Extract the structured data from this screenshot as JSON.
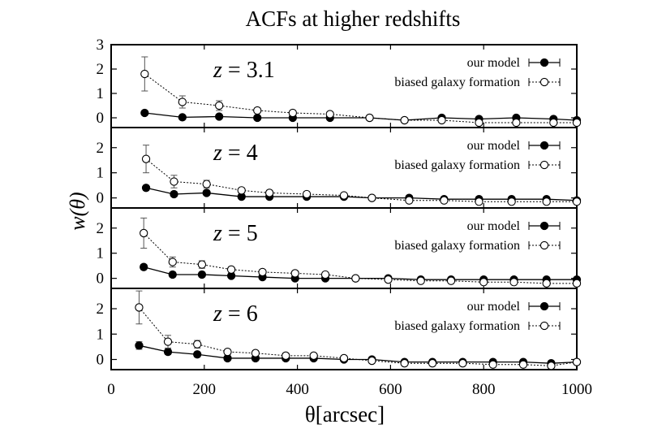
{
  "chart_data": {
    "type": "line",
    "title": "ACFs at higher redshifts",
    "xlabel": "θ[arcsec]",
    "ylabel": "w(θ)",
    "xlim": [
      0,
      1000
    ],
    "x_ticks": [
      "0",
      "200",
      "400",
      "600",
      "800",
      "1000"
    ],
    "legend_position": "top-right",
    "panels": [
      {
        "label_var": "z",
        "label_value": "= 3.1",
        "ylim": [
          -0.4,
          3
        ],
        "y_ticks": [
          "3",
          "2",
          "1",
          "0"
        ],
        "series": [
          {
            "name": "our model",
            "style": "filled-circle-solid",
            "points": [
              [
                72,
                0.2,
                0.05
              ],
              [
                153,
                0.02,
                0.05
              ],
              [
                232,
                0.05,
                0.05
              ],
              [
                314,
                0.0,
                0.05
              ],
              [
                390,
                0.0,
                0.05
              ],
              [
                470,
                0.0,
                0.05
              ],
              [
                555,
                0.0,
                0.05
              ],
              [
                630,
                -0.1,
                0.05
              ],
              [
                710,
                0.0,
                0.05
              ],
              [
                790,
                -0.05,
                0.05
              ],
              [
                870,
                0.0,
                0.05
              ],
              [
                950,
                -0.05,
                0.05
              ],
              [
                1000,
                -0.1,
                0.05
              ]
            ]
          },
          {
            "name": "biased galaxy formation",
            "style": "open-circle-dotted",
            "points": [
              [
                72,
                1.8,
                0.7
              ],
              [
                153,
                0.65,
                0.25
              ],
              [
                232,
                0.5,
                0.2
              ],
              [
                314,
                0.3,
                0.1
              ],
              [
                390,
                0.2,
                0.1
              ],
              [
                470,
                0.15,
                0.1
              ],
              [
                555,
                0.0,
                0.05
              ],
              [
                630,
                -0.1,
                0.05
              ],
              [
                710,
                -0.1,
                0.05
              ],
              [
                790,
                -0.2,
                0.05
              ],
              [
                870,
                -0.2,
                0.05
              ],
              [
                950,
                -0.2,
                0.05
              ],
              [
                1000,
                -0.2,
                0.05
              ]
            ]
          }
        ]
      },
      {
        "label_var": "z",
        "label_value": "= 4",
        "ylim": [
          -0.4,
          2.8
        ],
        "y_ticks": [
          "2",
          "1",
          "0"
        ],
        "series": [
          {
            "name": "our model",
            "style": "filled-circle-solid",
            "points": [
              [
                75,
                0.4,
                0.1
              ],
              [
                135,
                0.15,
                0.1
              ],
              [
                205,
                0.2,
                0.1
              ],
              [
                280,
                0.05,
                0.05
              ],
              [
                340,
                0.05,
                0.05
              ],
              [
                420,
                0.05,
                0.05
              ],
              [
                500,
                0.05,
                0.05
              ],
              [
                560,
                0.0,
                0.05
              ],
              [
                640,
                0.0,
                0.05
              ],
              [
                715,
                -0.05,
                0.05
              ],
              [
                790,
                -0.05,
                0.05
              ],
              [
                860,
                -0.05,
                0.05
              ],
              [
                935,
                -0.05,
                0.05
              ],
              [
                1000,
                -0.1,
                0.05
              ]
            ]
          },
          {
            "name": "biased galaxy formation",
            "style": "open-circle-dotted",
            "points": [
              [
                75,
                1.55,
                0.55
              ],
              [
                135,
                0.65,
                0.25
              ],
              [
                205,
                0.55,
                0.15
              ],
              [
                280,
                0.3,
                0.1
              ],
              [
                340,
                0.2,
                0.1
              ],
              [
                420,
                0.15,
                0.1
              ],
              [
                500,
                0.1,
                0.05
              ],
              [
                560,
                0.0,
                0.05
              ],
              [
                640,
                -0.1,
                0.05
              ],
              [
                715,
                -0.1,
                0.05
              ],
              [
                790,
                -0.15,
                0.05
              ],
              [
                860,
                -0.15,
                0.05
              ],
              [
                935,
                -0.15,
                0.05
              ],
              [
                1000,
                -0.15,
                0.05
              ]
            ]
          }
        ]
      },
      {
        "label_var": "z",
        "label_value": "= 5",
        "ylim": [
          -0.4,
          2.8
        ],
        "y_ticks": [
          "2",
          "1",
          "0"
        ],
        "series": [
          {
            "name": "our model",
            "style": "filled-circle-solid",
            "points": [
              [
                70,
                0.45,
                0.1
              ],
              [
                132,
                0.15,
                0.1
              ],
              [
                195,
                0.15,
                0.1
              ],
              [
                258,
                0.1,
                0.05
              ],
              [
                325,
                0.05,
                0.05
              ],
              [
                395,
                0.0,
                0.05
              ],
              [
                460,
                0.0,
                0.05
              ],
              [
                525,
                0.0,
                0.05
              ],
              [
                595,
                0.0,
                0.05
              ],
              [
                665,
                -0.05,
                0.05
              ],
              [
                730,
                -0.05,
                0.05
              ],
              [
                800,
                -0.05,
                0.05
              ],
              [
                865,
                -0.05,
                0.05
              ],
              [
                935,
                -0.05,
                0.05
              ],
              [
                1000,
                -0.05,
                0.05
              ]
            ]
          },
          {
            "name": "biased galaxy formation",
            "style": "open-circle-dotted",
            "points": [
              [
                70,
                1.8,
                0.6
              ],
              [
                132,
                0.65,
                0.2
              ],
              [
                195,
                0.55,
                0.15
              ],
              [
                258,
                0.35,
                0.1
              ],
              [
                325,
                0.25,
                0.1
              ],
              [
                395,
                0.2,
                0.1
              ],
              [
                460,
                0.15,
                0.05
              ],
              [
                525,
                0.0,
                0.05
              ],
              [
                595,
                -0.05,
                0.05
              ],
              [
                665,
                -0.1,
                0.05
              ],
              [
                730,
                -0.1,
                0.05
              ],
              [
                800,
                -0.15,
                0.05
              ],
              [
                865,
                -0.15,
                0.05
              ],
              [
                935,
                -0.2,
                0.05
              ],
              [
                1000,
                -0.2,
                0.05
              ]
            ]
          }
        ]
      },
      {
        "label_var": "z",
        "label_value": "= 6",
        "ylim": [
          -0.4,
          2.8
        ],
        "y_ticks": [
          "2",
          "1",
          "0"
        ],
        "series": [
          {
            "name": "our model",
            "style": "filled-circle-solid",
            "points": [
              [
                60,
                0.55,
                0.15
              ],
              [
                122,
                0.3,
                0.1
              ],
              [
                185,
                0.2,
                0.1
              ],
              [
                250,
                0.05,
                0.05
              ],
              [
                310,
                0.05,
                0.05
              ],
              [
                375,
                0.05,
                0.05
              ],
              [
                435,
                0.05,
                0.05
              ],
              [
                500,
                0.0,
                0.05
              ],
              [
                560,
                0.0,
                0.05
              ],
              [
                630,
                -0.1,
                0.05
              ],
              [
                690,
                -0.1,
                0.05
              ],
              [
                755,
                -0.1,
                0.05
              ],
              [
                820,
                -0.1,
                0.05
              ],
              [
                885,
                -0.1,
                0.05
              ],
              [
                945,
                -0.15,
                0.05
              ],
              [
                1000,
                -0.1,
                0.05
              ]
            ]
          },
          {
            "name": "biased galaxy formation",
            "style": "open-circle-dotted",
            "points": [
              [
                60,
                2.05,
                0.65
              ],
              [
                122,
                0.7,
                0.25
              ],
              [
                185,
                0.6,
                0.15
              ],
              [
                250,
                0.3,
                0.1
              ],
              [
                310,
                0.25,
                0.1
              ],
              [
                375,
                0.15,
                0.1
              ],
              [
                435,
                0.15,
                0.05
              ],
              [
                500,
                0.05,
                0.05
              ],
              [
                560,
                -0.05,
                0.05
              ],
              [
                630,
                -0.15,
                0.05
              ],
              [
                690,
                -0.15,
                0.05
              ],
              [
                755,
                -0.15,
                0.05
              ],
              [
                820,
                -0.2,
                0.05
              ],
              [
                885,
                -0.2,
                0.05
              ],
              [
                945,
                -0.25,
                0.05
              ],
              [
                1000,
                -0.1,
                0.05
              ]
            ]
          }
        ]
      }
    ]
  }
}
